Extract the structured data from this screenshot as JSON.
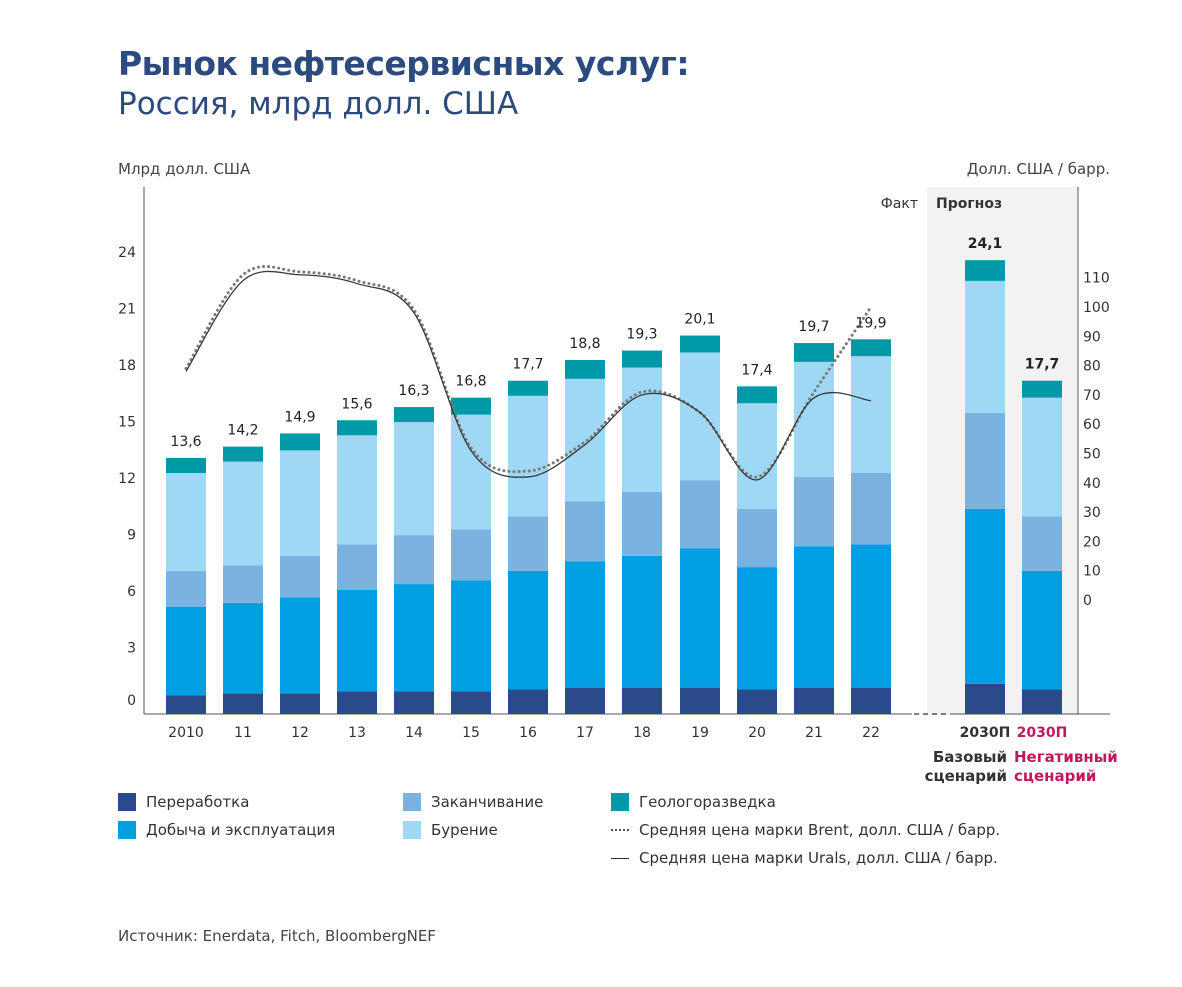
{
  "title": {
    "line1": "Рынок нефтесервисных услуг:",
    "line2": "Россия, млрд долл. США"
  },
  "left_axis_label": "Млрд долл. США",
  "right_axis_label": "Долл. США / барр.",
  "zone_fact": "Факт",
  "zone_forecast": "Прогноз",
  "scenario_base": "Базовый сценарий",
  "scenario_negative": "Негативный сценарий",
  "source": "Источник: Enerdata, Fitch, BloombergNEF",
  "colors": {
    "pererabotka": "#2b4a8c",
    "dobycha": "#009fe3",
    "zakanchivanie": "#7ab3e0",
    "burenie": "#9fd8f5",
    "geologorazvedka": "#0099a8",
    "brent": "#888888",
    "urals": "#444444",
    "negative_accent": "#c0185f",
    "title": "#2b4a7f",
    "forecast_bg": "#f2f2f2"
  },
  "legend": [
    {
      "label": "Переработка",
      "color": "#2b4a8c",
      "kind": "box"
    },
    {
      "label": "Добыча и эксплуатация",
      "color": "#009fe3",
      "kind": "box"
    },
    {
      "label": "Заканчивание",
      "color": "#7ab3e0",
      "kind": "box"
    },
    {
      "label": "Бурение",
      "color": "#9fd8f5",
      "kind": "box"
    },
    {
      "label": "Геологоразведка",
      "color": "#0099a8",
      "kind": "box"
    },
    {
      "label": "Средняя цена марки Brent, долл. США / барр.",
      "color": "#666666",
      "kind": "dotted"
    },
    {
      "label": "Средняя цена марки Urals, долл. США / барр.",
      "color": "#333333",
      "kind": "solid"
    }
  ],
  "chart_data": {
    "type": "bar",
    "stacked": true,
    "categories": [
      "2010",
      "11",
      "12",
      "13",
      "14",
      "15",
      "16",
      "17",
      "18",
      "19",
      "20",
      "21",
      "22",
      "2030П",
      "2030П"
    ],
    "totals_labels": [
      "13,6",
      "14,2",
      "14,9",
      "15,6",
      "16,3",
      "16,8",
      "17,7",
      "18,8",
      "19,3",
      "20,1",
      "17,4",
      "19,7",
      "19,9",
      "24,1",
      "17,7"
    ],
    "totals": [
      13.6,
      14.2,
      14.9,
      15.6,
      16.3,
      16.8,
      17.7,
      18.8,
      19.3,
      20.1,
      17.4,
      19.7,
      19.9,
      24.1,
      17.7
    ],
    "series": [
      {
        "name": "Переработка",
        "key": "pererabotka",
        "values": [
          1.0,
          1.1,
          1.1,
          1.2,
          1.2,
          1.2,
          1.3,
          1.4,
          1.4,
          1.4,
          1.3,
          1.4,
          1.4,
          1.6,
          1.3
        ]
      },
      {
        "name": "Добыча и эксплуатация",
        "key": "dobycha",
        "values": [
          4.7,
          4.8,
          5.1,
          5.4,
          5.7,
          5.9,
          6.3,
          6.7,
          7.0,
          7.4,
          6.5,
          7.5,
          7.6,
          9.3,
          6.3
        ]
      },
      {
        "name": "Заканчивание",
        "key": "zakanchivanie",
        "values": [
          1.9,
          2.0,
          2.2,
          2.4,
          2.6,
          2.7,
          2.9,
          3.2,
          3.4,
          3.6,
          3.1,
          3.7,
          3.8,
          5.1,
          2.9
        ]
      },
      {
        "name": "Бурение",
        "key": "burenie",
        "values": [
          5.2,
          5.5,
          5.6,
          5.8,
          6.0,
          6.1,
          6.4,
          6.5,
          6.6,
          6.8,
          5.6,
          6.1,
          6.2,
          7.0,
          6.3
        ]
      },
      {
        "name": "Геологоразведка",
        "key": "geologorazvedka",
        "values": [
          0.8,
          0.8,
          0.9,
          0.8,
          0.8,
          0.9,
          0.8,
          1.0,
          0.9,
          0.9,
          0.9,
          1.0,
          0.9,
          1.1,
          0.9
        ]
      }
    ],
    "lines": [
      {
        "name": "Средняя цена марки Brent, долл. США / барр.",
        "style": "dotted",
        "x": [
          "2010",
          "11",
          "12",
          "13",
          "14",
          "15",
          "16",
          "17",
          "18",
          "19",
          "20",
          "21",
          "22"
        ],
        "values": [
          79,
          111,
          112,
          109,
          99,
          52,
          44,
          54,
          71,
          64,
          42,
          71,
          100
        ]
      },
      {
        "name": "Средняя цена марки Urals, долл. США / барр.",
        "style": "solid",
        "x": [
          "2010",
          "11",
          "12",
          "13",
          "14",
          "15",
          "16",
          "17",
          "18",
          "19",
          "20",
          "21",
          "22"
        ],
        "values": [
          78,
          109,
          111,
          108,
          98,
          51,
          42,
          53,
          70,
          64,
          41,
          69,
          68
        ]
      }
    ],
    "y_left": {
      "label": "Млрд долл. США",
      "ticks": [
        0,
        3,
        6,
        9,
        12,
        15,
        18,
        21,
        24
      ],
      "lim": [
        0,
        24
      ]
    },
    "y_right": {
      "label": "Долл. США / барр.",
      "ticks": [
        0,
        10,
        20,
        30,
        40,
        50,
        60,
        70,
        80,
        90,
        100,
        110
      ]
    }
  }
}
